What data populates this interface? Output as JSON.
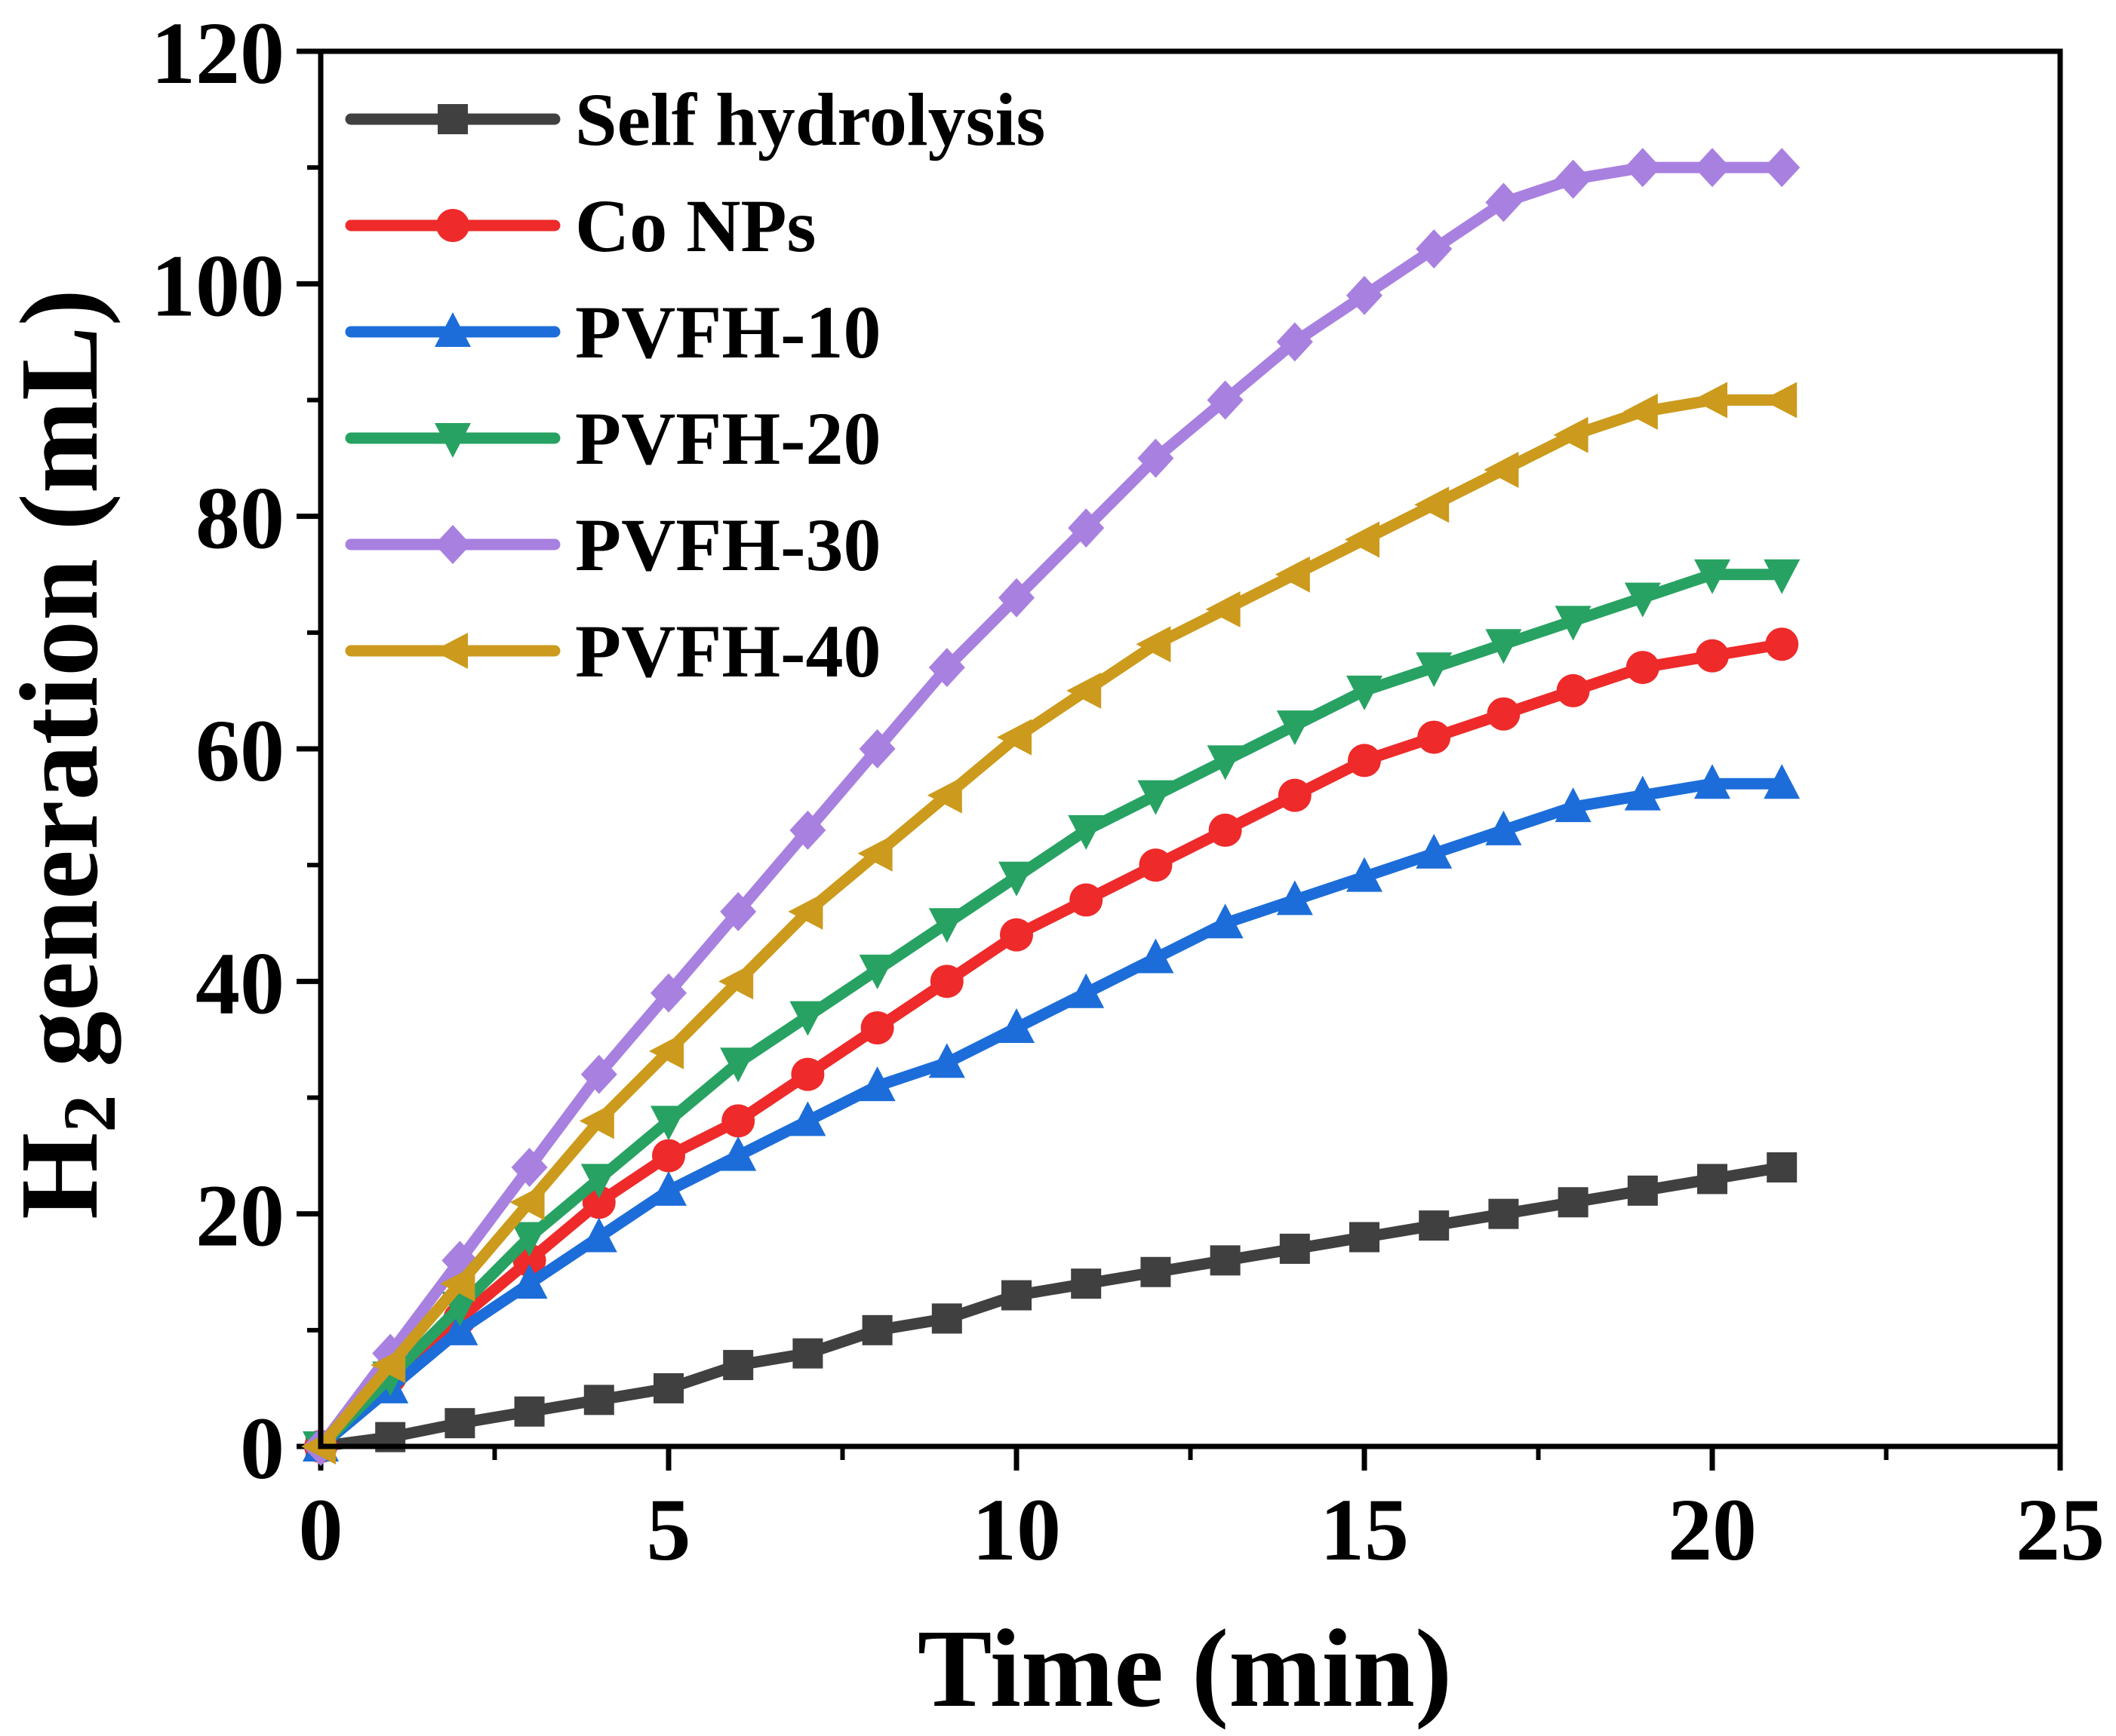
{
  "chart_data": {
    "type": "line",
    "title": "",
    "xlabel": "Time (min)",
    "ylabel_main": "H",
    "ylabel_sub": "2",
    "ylabel_rest": " generation (mL)",
    "xlim": [
      0,
      25
    ],
    "ylim": [
      0,
      120
    ],
    "xticks": [
      0,
      5,
      10,
      15,
      20,
      25
    ],
    "yticks": [
      0,
      20,
      40,
      60,
      80,
      100,
      120
    ],
    "x": [
      0,
      1,
      2,
      3,
      4,
      5,
      6,
      7,
      8,
      9,
      10,
      11,
      12,
      13,
      14,
      15,
      16,
      17,
      18,
      19,
      20,
      21
    ],
    "legend_position": "top-left",
    "series": [
      {
        "name": "Self hydrolysis",
        "color": "#404040",
        "marker": "square",
        "values": [
          0,
          0.8,
          2,
          3,
          4,
          5,
          7,
          8,
          10,
          11,
          13,
          14,
          15,
          16,
          17,
          18,
          19,
          20,
          21,
          22,
          23,
          24
        ]
      },
      {
        "name": "Co NPs",
        "color": "#EE2A2A",
        "marker": "circle",
        "values": [
          0,
          6,
          11,
          16,
          21,
          25,
          28,
          32,
          36,
          40,
          44,
          47,
          50,
          53,
          56,
          59,
          61,
          63,
          65,
          67,
          68,
          69
        ]
      },
      {
        "name": "PVFH-10",
        "color": "#1C6DD9",
        "marker": "triangle-up",
        "values": [
          0,
          5,
          10,
          14,
          18,
          22,
          25,
          28,
          31,
          33,
          36,
          39,
          42,
          45,
          47,
          49,
          51,
          53,
          55,
          56,
          57,
          57
        ]
      },
      {
        "name": "PVFH-20",
        "color": "#27A262",
        "marker": "triangle-down",
        "values": [
          0,
          6,
          12,
          18,
          23,
          28,
          33,
          37,
          41,
          45,
          49,
          53,
          56,
          59,
          62,
          65,
          67,
          69,
          71,
          73,
          75,
          75
        ]
      },
      {
        "name": "PVFH-30",
        "color": "#A880E0",
        "marker": "diamond",
        "values": [
          0,
          8,
          16,
          24,
          32,
          39,
          46,
          53,
          60,
          67,
          73,
          79,
          85,
          90,
          95,
          99,
          103,
          107,
          109,
          110,
          110,
          110
        ]
      },
      {
        "name": "PVFH-40",
        "color": "#CC9A1C",
        "marker": "triangle-left",
        "values": [
          0,
          7,
          14,
          21,
          28,
          34,
          40,
          46,
          51,
          56,
          61,
          65,
          69,
          72,
          75,
          78,
          81,
          84,
          87,
          89,
          90,
          90
        ]
      }
    ]
  }
}
